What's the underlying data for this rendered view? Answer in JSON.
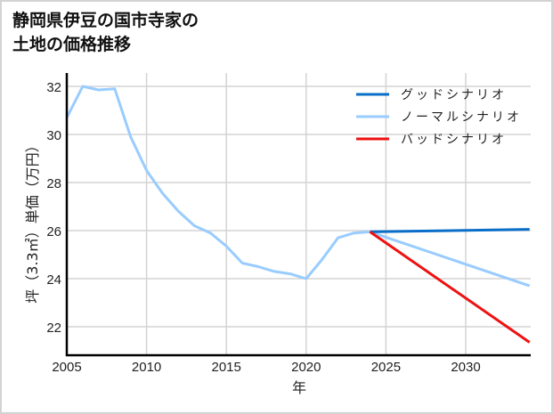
{
  "title_line1": "静岡県伊豆の国市寺家の",
  "title_line2": "土地の価格推移",
  "chart_data": {
    "type": "line",
    "title": "静岡県伊豆の国市寺家の土地の価格推移",
    "xlabel": "年",
    "ylabel": "坪（3.3㎡）単価（万円）",
    "xlim": [
      2005,
      2034
    ],
    "ylim": [
      20.8,
      32.5
    ],
    "xticks": [
      2005,
      2010,
      2015,
      2020,
      2025,
      2030
    ],
    "yticks": [
      22,
      24,
      26,
      28,
      30,
      32
    ],
    "grid": true,
    "legend_position": "upper right",
    "series": [
      {
        "name": "グッドシナリオ",
        "color": "#0a6ec8",
        "x": [
          2024,
          2034
        ],
        "values": [
          25.95,
          26.05
        ]
      },
      {
        "name": "ノーマルシナリオ",
        "color": "#99ccff",
        "x": [
          2005,
          2006,
          2007,
          2008,
          2009,
          2010,
          2011,
          2012,
          2013,
          2014,
          2015,
          2016,
          2017,
          2018,
          2019,
          2020,
          2021,
          2022,
          2023,
          2024,
          2034
        ],
        "values": [
          30.7,
          32.0,
          31.85,
          31.9,
          29.9,
          28.5,
          27.55,
          26.8,
          26.2,
          25.9,
          25.35,
          24.65,
          24.5,
          24.3,
          24.2,
          24.0,
          24.8,
          25.7,
          25.9,
          25.95,
          23.7
        ]
      },
      {
        "name": "バッドシナリオ",
        "color": "#ee1111",
        "x": [
          2024,
          2034
        ],
        "values": [
          25.95,
          21.35
        ]
      }
    ]
  }
}
